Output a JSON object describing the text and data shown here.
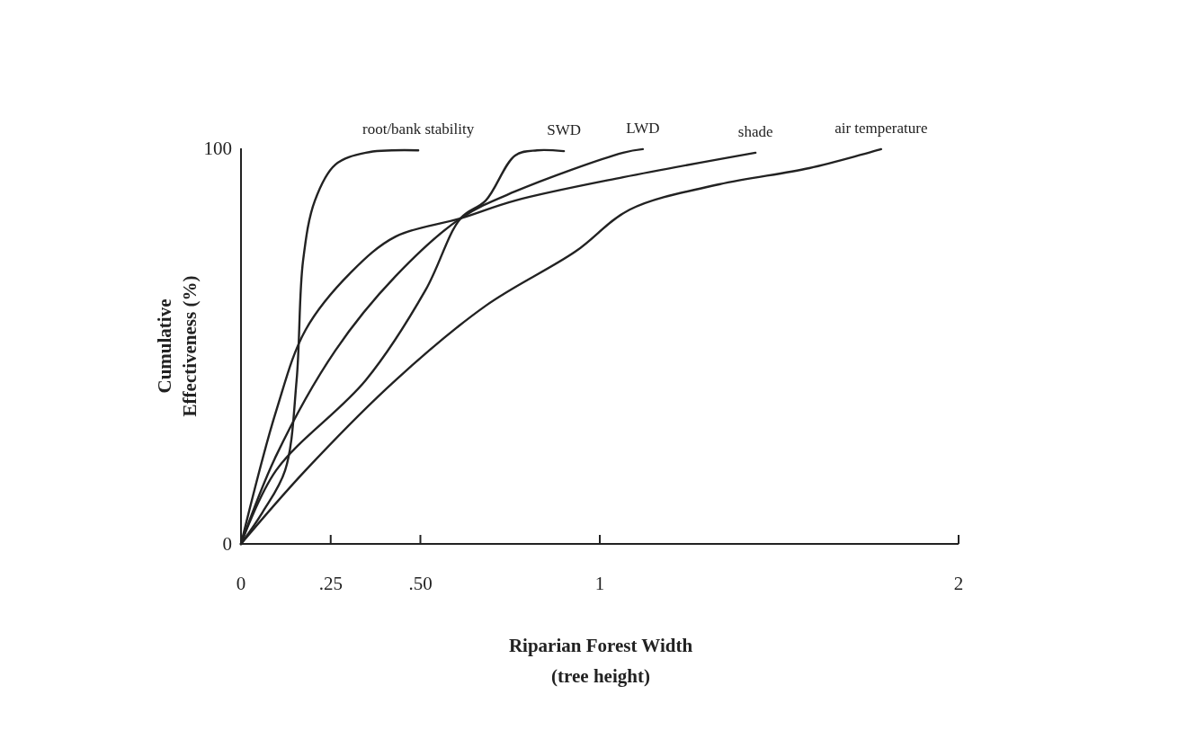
{
  "chart_data": {
    "type": "line",
    "xlabel": "Riparian Forest Width (tree height)",
    "ylabel": "Cumulative Effectiveness (%)",
    "xlim": [
      0,
      2
    ],
    "xticks": [
      0,
      {
        "value": 0.25,
        "label": ".25"
      },
      {
        "value": 0.5,
        "label": ".50"
      },
      1,
      2
    ],
    "ylim": [
      0,
      100
    ],
    "yticks": [
      0,
      100
    ],
    "grid": false,
    "legend": false,
    "marker": "none",
    "line_style": "solid",
    "series": [
      {
        "name": "root/bank stability",
        "color": "#222222",
        "x": [
          0,
          0.06,
          0.123,
          0.155,
          0.173,
          0.206,
          0.263,
          0.348,
          0.494
        ],
        "values": [
          0,
          8,
          18.6,
          41.4,
          71.6,
          86.8,
          95.9,
          98.9,
          99.5
        ]
      },
      {
        "name": "SWD",
        "color": "#222222",
        "x": [
          0,
          0.098,
          0.348,
          0.514,
          0.612,
          0.682,
          0.764,
          0.825,
          0.9
        ],
        "values": [
          0,
          18.6,
          41.4,
          64.1,
          82.3,
          86.8,
          98.2,
          99.5,
          99.3
        ]
      },
      {
        "name": "LWD",
        "color": "#222222",
        "x": [
          0,
          0.098,
          0.263,
          0.431,
          0.612,
          0.764,
          1.065,
          1.12
        ],
        "values": [
          0,
          22.3,
          48.9,
          67.7,
          82.3,
          89.1,
          98.9,
          99.8
        ]
      },
      {
        "name": "shade",
        "color": "#222222",
        "x": [
          0,
          0.098,
          0.18,
          0.306,
          0.431,
          0.612,
          0.764,
          1.065,
          1.434
        ],
        "values": [
          0,
          33.6,
          54.1,
          68.6,
          77.7,
          82.3,
          86.8,
          92.7,
          98.9
        ]
      },
      {
        "name": "air temperature",
        "color": "#222222",
        "x": [
          0,
          0.18,
          0.431,
          0.682,
          0.932,
          1.083,
          1.333,
          1.584,
          1.784
        ],
        "values": [
          0,
          18.6,
          41.4,
          60.2,
          73.9,
          84.5,
          90.9,
          95,
          99.8
        ]
      }
    ]
  }
}
